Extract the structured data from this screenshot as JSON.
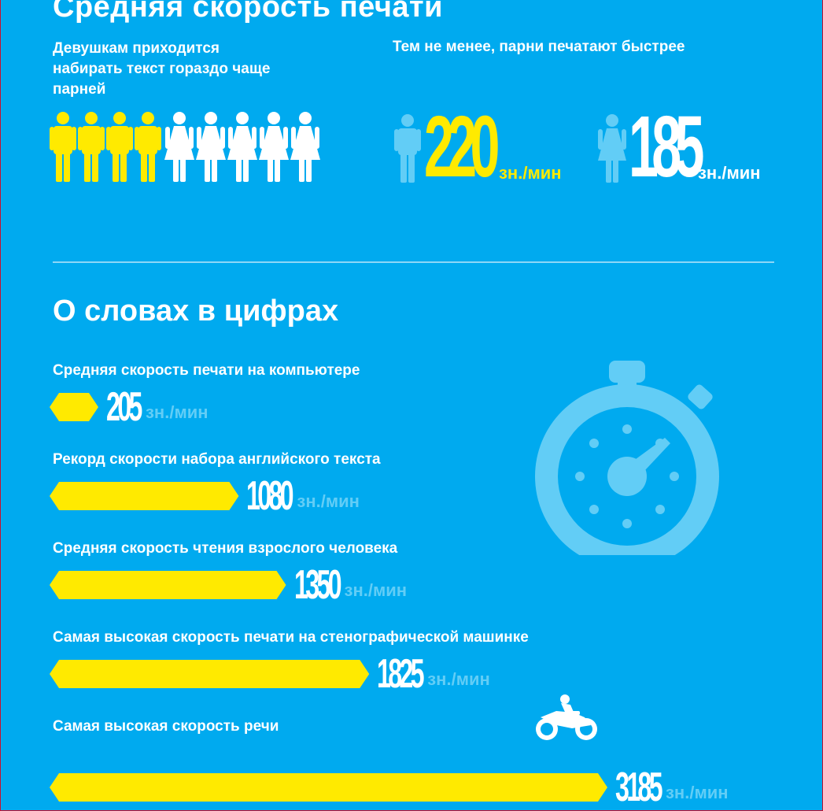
{
  "title": "Средняя скорость печати",
  "intro_left": "Девушкам приходится набирать текст гораздо чаще парней",
  "intro_right": "Тем не менее, парни печатают быстрее",
  "people": {
    "men_count": 4,
    "women_count": 5,
    "men_color": "#ffea00",
    "women_color": "#ffffff"
  },
  "male_speed": {
    "value": "220",
    "unit": "зн./мин",
    "color": "#ffea00"
  },
  "female_speed": {
    "value": "185",
    "unit": "зн./мин",
    "color": "#ffffff"
  },
  "section_title": "О словах в цифрах",
  "chart_data": {
    "type": "bar",
    "orientation": "horizontal",
    "unit": "зн./мин",
    "bar_color": "#ffea00",
    "categories": [
      "Средняя скорость печати на компьютере",
      "Рекорд скорости набора английского текста",
      "Средняя скорость чтения взрослого человека",
      "Самая высокая скорость печати на стенографической машинке",
      "Самая высокая скорость речи"
    ],
    "values": [
      205,
      1080,
      1350,
      1825,
      3185
    ]
  },
  "icons": {
    "stopwatch": "stopwatch-icon",
    "motorcycle": "motorcycle-icon"
  }
}
